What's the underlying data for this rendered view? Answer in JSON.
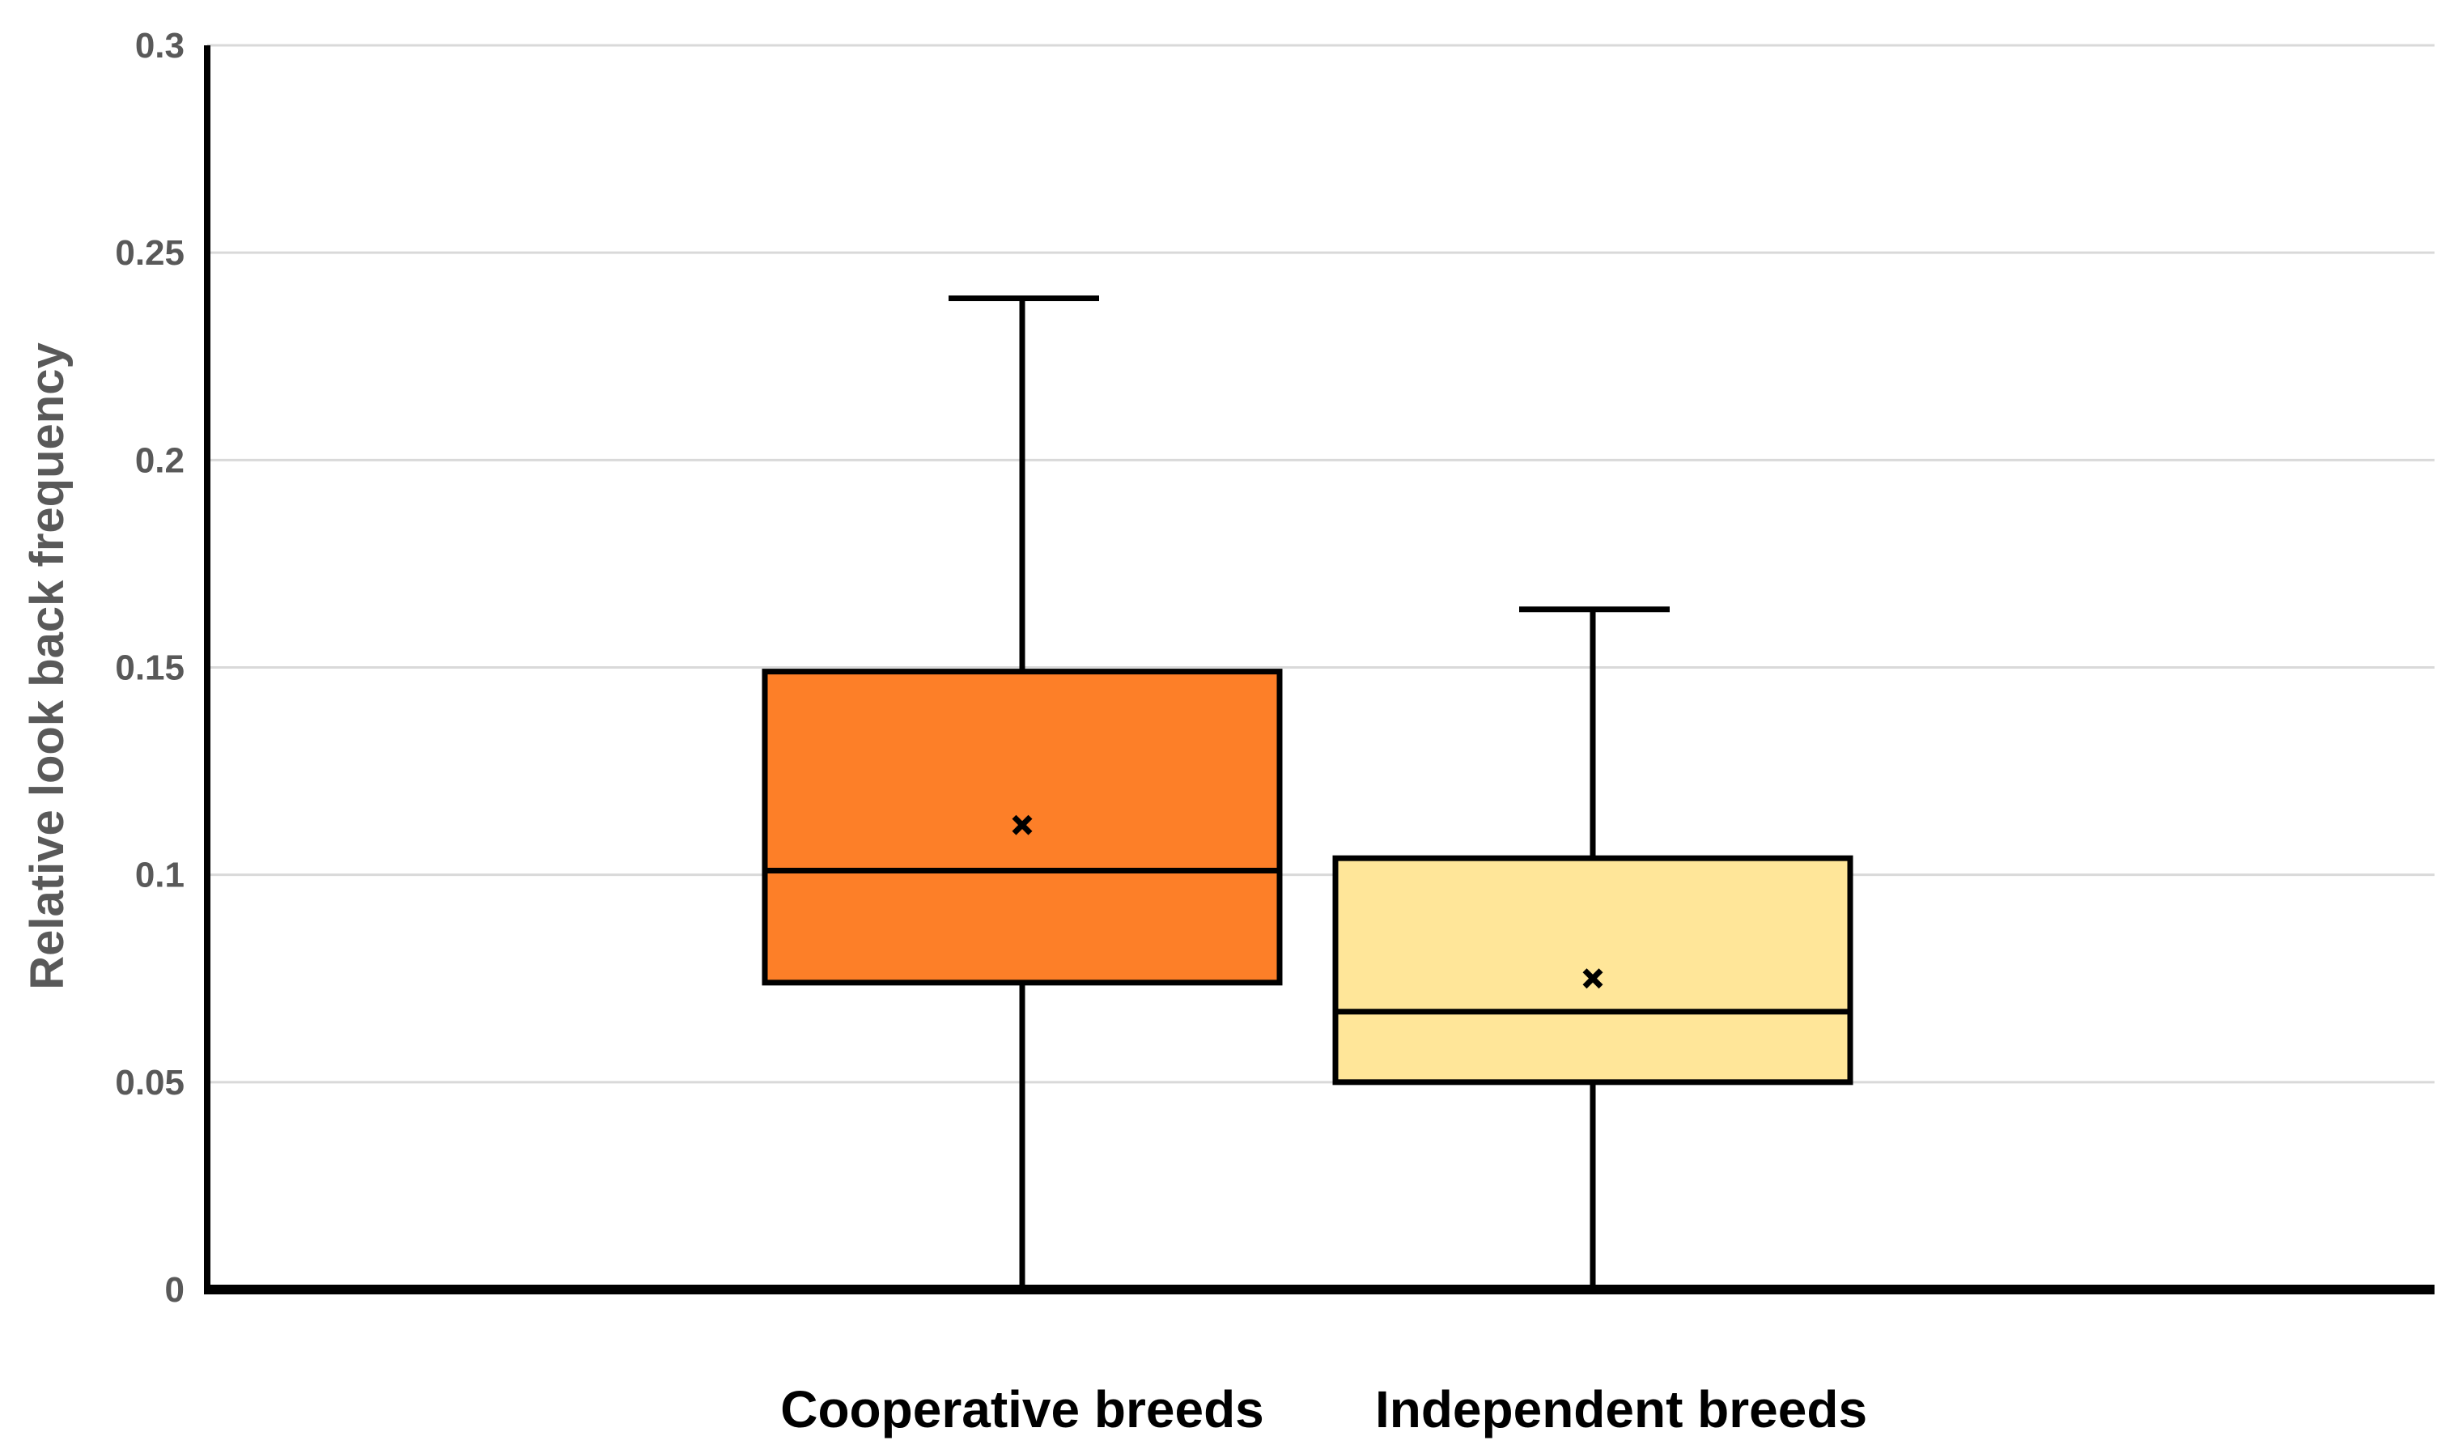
{
  "chart_data": {
    "type": "box",
    "ylabel": "Relative look back frequency",
    "xlabel": "",
    "ylim": [
      0,
      0.3
    ],
    "yticks": [
      {
        "value": 0,
        "label": "0"
      },
      {
        "value": 0.05,
        "label": "0.05"
      },
      {
        "value": 0.1,
        "label": "0.1"
      },
      {
        "value": 0.15,
        "label": "0.15"
      },
      {
        "value": 0.2,
        "label": "0.2"
      },
      {
        "value": 0.25,
        "label": "0.25"
      },
      {
        "value": 0.3,
        "label": "0.3"
      }
    ],
    "grid": true,
    "legend": "none",
    "categories": [
      "Cooperative breeds",
      "Independent breeds"
    ],
    "boxes": [
      {
        "category": "Cooperative breeds",
        "min": 0,
        "q1": 0.074,
        "median": 0.101,
        "q3": 0.149,
        "max": 0.239,
        "mean": 0.112,
        "color": "#fd7f28"
      },
      {
        "category": "Independent breeds",
        "min": 0,
        "q1": 0.05,
        "median": 0.067,
        "q3": 0.104,
        "max": 0.164,
        "mean": 0.075,
        "color": "#ffe699"
      }
    ]
  }
}
